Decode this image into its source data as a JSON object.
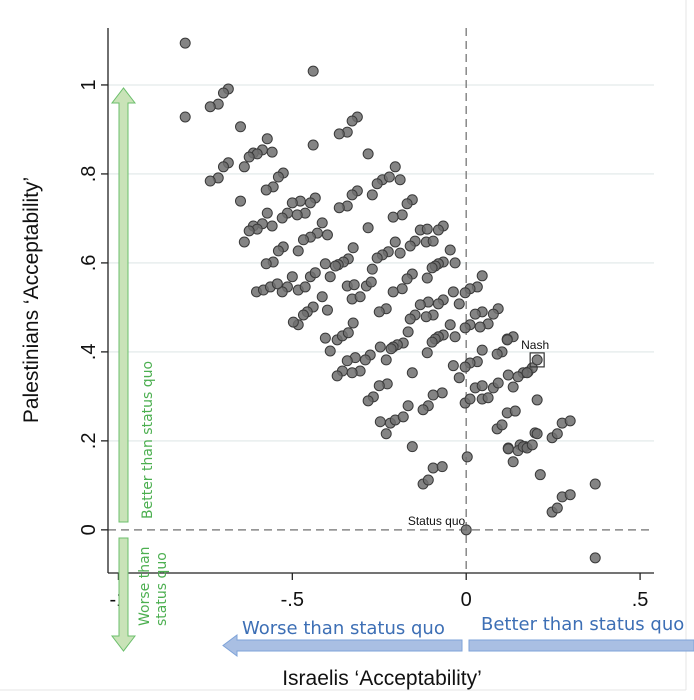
{
  "chart_data": {
    "type": "scatter",
    "xlabel": "Israelis ‘Acceptability’",
    "ylabel": "Palestinians ‘Acceptability’",
    "xlim": [
      -1.03,
      0.54
    ],
    "ylim": [
      -0.097,
      1.128
    ],
    "xticks": [
      {
        "v": -1,
        "label": "-1"
      },
      {
        "v": -0.5,
        "label": "-.5"
      },
      {
        "v": 0,
        "label": "0"
      },
      {
        "v": 0.5,
        "label": ".5"
      }
    ],
    "yticks": [
      {
        "v": 0,
        "label": "0"
      },
      {
        "v": 0.2,
        "label": ".2"
      },
      {
        "v": 0.4,
        "label": ".4"
      },
      {
        "v": 0.6,
        "label": ".6"
      },
      {
        "v": 0.8,
        "label": ".8"
      },
      {
        "v": 1,
        "label": "1"
      }
    ],
    "grid": "horizontal",
    "reference_lines": {
      "x": 0,
      "y": 0,
      "style": "dashed"
    },
    "annotations": {
      "nash": {
        "label": "Nash",
        "x": 0.204,
        "y": 0.382
      },
      "status_quo": {
        "label": "Status quo",
        "x": 0,
        "y": 0
      }
    },
    "axis_arrows": {
      "y_up": "Better than status quo",
      "y_down_line1": "Worse than",
      "y_down_line2": "status quo",
      "x_left": "Worse than status quo",
      "x_right": "Better than status quo"
    },
    "colors": {
      "point": "#6e6e6e",
      "green_arrow": "#c9e3b8",
      "green_text": "#4caf50",
      "blue_arrow": "#a9bfe3",
      "blue_text": "#3d6fb5"
    },
    "points": [
      [
        -0.808,
        1.094
      ],
      [
        -0.44,
        1.031
      ],
      [
        -0.684,
        0.991
      ],
      [
        -0.698,
        0.982
      ],
      [
        -0.713,
        0.957
      ],
      [
        -0.736,
        0.951
      ],
      [
        -0.808,
        0.928
      ],
      [
        -0.649,
        0.906
      ],
      [
        -0.313,
        0.928
      ],
      [
        -0.328,
        0.919
      ],
      [
        -0.342,
        0.894
      ],
      [
        -0.365,
        0.89
      ],
      [
        -0.572,
        0.879
      ],
      [
        -0.44,
        0.865
      ],
      [
        -0.586,
        0.854
      ],
      [
        -0.558,
        0.849
      ],
      [
        -0.612,
        0.847
      ],
      [
        -0.601,
        0.845
      ],
      [
        -0.624,
        0.838
      ],
      [
        -0.282,
        0.845
      ],
      [
        -0.684,
        0.825
      ],
      [
        -0.698,
        0.816
      ],
      [
        -0.638,
        0.816
      ],
      [
        -0.713,
        0.791
      ],
      [
        -0.736,
        0.784
      ],
      [
        -0.204,
        0.816
      ],
      [
        -0.526,
        0.802
      ],
      [
        -0.54,
        0.793
      ],
      [
        -0.241,
        0.787
      ],
      [
        -0.256,
        0.778
      ],
      [
        -0.221,
        0.793
      ],
      [
        -0.19,
        0.787
      ],
      [
        -0.555,
        0.771
      ],
      [
        -0.575,
        0.764
      ],
      [
        -0.313,
        0.762
      ],
      [
        -0.328,
        0.753
      ],
      [
        -0.27,
        0.753
      ],
      [
        -0.649,
        0.739
      ],
      [
        -0.434,
        0.746
      ],
      [
        -0.448,
        0.735
      ],
      [
        -0.477,
        0.739
      ],
      [
        -0.5,
        0.735
      ],
      [
        -0.342,
        0.728
      ],
      [
        -0.365,
        0.724
      ],
      [
        -0.155,
        0.742
      ],
      [
        -0.17,
        0.733
      ],
      [
        -0.463,
        0.712
      ],
      [
        -0.486,
        0.708
      ],
      [
        -0.514,
        0.712
      ],
      [
        -0.529,
        0.701
      ],
      [
        -0.572,
        0.712
      ],
      [
        -0.184,
        0.708
      ],
      [
        -0.21,
        0.703
      ],
      [
        -0.586,
        0.688
      ],
      [
        -0.558,
        0.683
      ],
      [
        -0.612,
        0.683
      ],
      [
        -0.601,
        0.676
      ],
      [
        -0.624,
        0.672
      ],
      [
        -0.638,
        0.647
      ],
      [
        -0.414,
        0.69
      ],
      [
        -0.282,
        0.679
      ],
      [
        -0.428,
        0.667
      ],
      [
        -0.399,
        0.663
      ],
      [
        -0.448,
        0.658
      ],
      [
        -0.468,
        0.652
      ],
      [
        -0.132,
        0.674
      ],
      [
        -0.112,
        0.676
      ],
      [
        -0.115,
        0.647
      ],
      [
        -0.147,
        0.649
      ],
      [
        -0.161,
        0.638
      ],
      [
        -0.204,
        0.647
      ],
      [
        -0.325,
        0.634
      ],
      [
        -0.526,
        0.636
      ],
      [
        -0.54,
        0.627
      ],
      [
        -0.483,
        0.627
      ],
      [
        -0.19,
        0.622
      ],
      [
        -0.224,
        0.625
      ],
      [
        -0.241,
        0.618
      ],
      [
        -0.256,
        0.611
      ],
      [
        -0.555,
        0.602
      ],
      [
        -0.575,
        0.598
      ],
      [
        -0.405,
        0.598
      ],
      [
        -0.339,
        0.609
      ],
      [
        -0.353,
        0.602
      ],
      [
        -0.368,
        0.596
      ],
      [
        -0.376,
        0.593
      ],
      [
        -0.27,
        0.586
      ],
      [
        -0.066,
        0.683
      ],
      [
        -0.08,
        0.674
      ],
      [
        -0.095,
        0.649
      ],
      [
        -0.046,
        0.629
      ],
      [
        -0.032,
        0.6
      ],
      [
        -0.066,
        0.602
      ],
      [
        -0.08,
        0.598
      ],
      [
        -0.089,
        0.593
      ],
      [
        -0.098,
        0.589
      ],
      [
        -0.112,
        0.566
      ],
      [
        -0.155,
        0.575
      ],
      [
        -0.17,
        0.564
      ],
      [
        0.046,
        0.571
      ],
      [
        0.032,
        0.546
      ],
      [
        0.011,
        0.542
      ],
      [
        -0.003,
        0.533
      ],
      [
        -0.037,
        0.535
      ],
      [
        -0.184,
        0.542
      ],
      [
        -0.21,
        0.535
      ],
      [
        -0.02,
        0.508
      ],
      [
        -0.066,
        0.517
      ],
      [
        -0.08,
        0.508
      ],
      [
        -0.109,
        0.512
      ],
      [
        -0.132,
        0.506
      ],
      [
        -0.095,
        0.483
      ],
      [
        -0.115,
        0.479
      ],
      [
        -0.147,
        0.483
      ],
      [
        -0.161,
        0.474
      ],
      [
        -0.23,
        0.497
      ],
      [
        -0.25,
        0.49
      ],
      [
        0.092,
        0.497
      ],
      [
        0.078,
        0.485
      ],
      [
        0.046,
        0.49
      ],
      [
        0.026,
        0.485
      ],
      [
        0.063,
        0.463
      ],
      [
        0.04,
        0.456
      ],
      [
        0.011,
        0.461
      ],
      [
        -0.003,
        0.454
      ],
      [
        -0.046,
        0.461
      ],
      [
        -0.032,
        0.434
      ],
      [
        -0.066,
        0.438
      ],
      [
        -0.08,
        0.434
      ],
      [
        -0.089,
        0.429
      ],
      [
        -0.098,
        0.422
      ],
      [
        -0.112,
        0.398
      ],
      [
        -0.181,
        0.42
      ],
      [
        -0.198,
        0.416
      ],
      [
        -0.21,
        0.411
      ],
      [
        -0.216,
        0.407
      ],
      [
        -0.167,
        0.445
      ],
      [
        -0.247,
        0.411
      ],
      [
        -0.23,
        0.382
      ],
      [
        -0.276,
        0.393
      ],
      [
        -0.29,
        0.382
      ],
      [
        -0.319,
        0.387
      ],
      [
        -0.342,
        0.38
      ],
      [
        -0.305,
        0.357
      ],
      [
        -0.328,
        0.353
      ],
      [
        -0.356,
        0.357
      ],
      [
        -0.371,
        0.346
      ],
      [
        -0.391,
        0.402
      ],
      [
        -0.405,
        0.431
      ],
      [
        -0.371,
        0.427
      ],
      [
        -0.356,
        0.436
      ],
      [
        -0.339,
        0.443
      ],
      [
        -0.325,
        0.465
      ],
      [
        -0.399,
        0.494
      ],
      [
        -0.414,
        0.524
      ],
      [
        -0.44,
        0.501
      ],
      [
        -0.457,
        0.49
      ],
      [
        -0.468,
        0.483
      ],
      [
        -0.483,
        0.461
      ],
      [
        0.135,
        0.434
      ],
      [
        0.118,
        0.429
      ],
      [
        0.103,
        0.4
      ],
      [
        0.089,
        0.395
      ],
      [
        0.046,
        0.404
      ],
      [
        0.032,
        0.378
      ],
      [
        0.011,
        0.375
      ],
      [
        -0.003,
        0.366
      ],
      [
        -0.037,
        0.369
      ],
      [
        -0.02,
        0.342
      ],
      [
        -0.155,
        0.353
      ],
      [
        -0.227,
        0.328
      ],
      [
        -0.25,
        0.324
      ],
      [
        -0.267,
        0.299
      ],
      [
        -0.282,
        0.29
      ],
      [
        -0.167,
        0.279
      ],
      [
        -0.109,
        0.279
      ],
      [
        -0.124,
        0.27
      ],
      [
        -0.069,
        0.308
      ],
      [
        -0.095,
        0.303
      ],
      [
        -0.003,
        0.285
      ],
      [
        0.011,
        0.294
      ],
      [
        0.046,
        0.294
      ],
      [
        0.063,
        0.297
      ],
      [
        0.026,
        0.319
      ],
      [
        0.046,
        0.324
      ],
      [
        0.078,
        0.319
      ],
      [
        0.092,
        0.33
      ],
      [
        0.121,
        0.348
      ],
      [
        0.135,
        0.321
      ],
      [
        -0.247,
        0.243
      ],
      [
        -0.23,
        0.216
      ],
      [
        -0.218,
        0.24
      ],
      [
        -0.204,
        0.247
      ],
      [
        -0.181,
        0.254
      ],
      [
        -0.155,
        0.187
      ],
      [
        0.118,
        0.263
      ],
      [
        0.141,
        0.267
      ],
      [
        0.089,
        0.227
      ],
      [
        0.103,
        0.236
      ],
      [
        0.198,
        0.218
      ],
      [
        0.204,
        0.292
      ],
      [
        0.155,
        0.191
      ],
      [
        0.17,
        0.187
      ],
      [
        0.121,
        0.184
      ],
      [
        0.178,
        0.355
      ],
      [
        0.164,
        0.353
      ],
      [
        0.19,
        0.364
      ],
      [
        -0.514,
        0.546
      ],
      [
        -0.529,
        0.535
      ],
      [
        -0.5,
        0.569
      ],
      [
        -0.483,
        0.539
      ],
      [
        -0.463,
        0.546
      ],
      [
        -0.448,
        0.569
      ],
      [
        -0.434,
        0.578
      ],
      [
        -0.391,
        0.569
      ],
      [
        -0.342,
        0.548
      ],
      [
        -0.322,
        0.551
      ],
      [
        -0.328,
        0.519
      ],
      [
        -0.305,
        0.524
      ],
      [
        -0.287,
        0.548
      ],
      [
        -0.273,
        0.557
      ],
      [
        -0.603,
        0.535
      ],
      [
        -0.583,
        0.539
      ],
      [
        -0.563,
        0.546
      ],
      [
        -0.543,
        0.553
      ],
      [
        -0.497,
        0.467
      ],
      [
        0.003,
        0.164
      ],
      [
        -0.095,
        0.139
      ],
      [
        -0.069,
        0.142
      ],
      [
        -0.124,
        0.103
      ],
      [
        -0.109,
        0.112
      ],
      [
        0.213,
        0.124
      ],
      [
        0.371,
        0.103
      ],
      [
        0.276,
        0.074
      ],
      [
        0.299,
        0.079
      ],
      [
        0.247,
        0.04
      ],
      [
        0.262,
        0.049
      ],
      [
        0,
        0
      ],
      [
        0.371,
        -0.063
      ],
      [
        0.135,
        0.153
      ],
      [
        0.121,
        0.182
      ],
      [
        0.149,
        0.178
      ],
      [
        0.164,
        0.187
      ],
      [
        0.175,
        0.184
      ],
      [
        0.19,
        0.191
      ],
      [
        0.204,
        0.216
      ],
      [
        0.247,
        0.207
      ],
      [
        0.262,
        0.216
      ],
      [
        0.276,
        0.24
      ],
      [
        0.299,
        0.245
      ],
      [
        0.149,
        0.344
      ],
      [
        0.175,
        0.353
      ],
      [
        0.204,
        0.382
      ],
      [
        0.118,
        0.427
      ]
    ]
  }
}
